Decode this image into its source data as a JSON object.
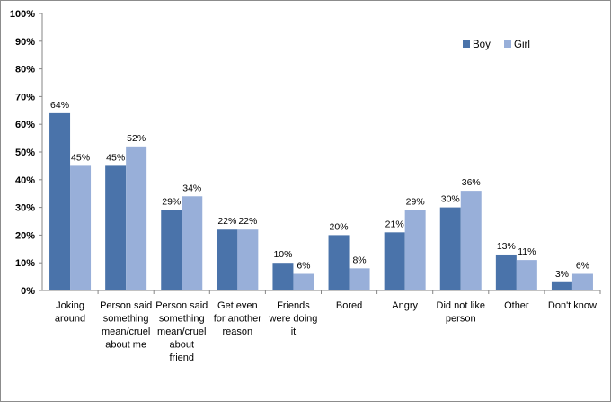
{
  "chart_data": {
    "type": "bar",
    "categories": [
      "Joking around",
      "Person said something mean/cruel about me",
      "Person said something mean/cruel about friend",
      "Get even for another reason",
      "Friends were doing it",
      "Bored",
      "Angry",
      "Did not like person",
      "Other",
      "Don't know"
    ],
    "category_lines": [
      [
        "Joking",
        "around"
      ],
      [
        "Person said",
        "something",
        "mean/cruel",
        "about me"
      ],
      [
        "Person said",
        "something",
        "mean/cruel",
        "about",
        "friend"
      ],
      [
        "Get even",
        "for another",
        "reason"
      ],
      [
        "Friends",
        "were doing",
        "it"
      ],
      [
        "Bored"
      ],
      [
        "Angry"
      ],
      [
        "Did not like",
        "person"
      ],
      [
        "Other"
      ],
      [
        "Don't know"
      ]
    ],
    "series": [
      {
        "name": "Boy",
        "values": [
          64,
          45,
          29,
          22,
          10,
          20,
          21,
          30,
          13,
          3
        ],
        "labels": [
          "64%",
          "45%",
          "29%",
          "22%",
          "10%",
          "20%",
          "21%",
          "30%",
          "13%",
          "3%"
        ],
        "color": "#4a73aa"
      },
      {
        "name": "Girl",
        "values": [
          45,
          52,
          34,
          22,
          6,
          8,
          29,
          36,
          11,
          6
        ],
        "labels": [
          "45%",
          "52%",
          "34%",
          "22%",
          "6%",
          "8%",
          "29%",
          "36%",
          "11%",
          "6%"
        ],
        "color": "#98afd9"
      }
    ],
    "ylim": [
      0,
      100
    ],
    "yticks": [
      0,
      10,
      20,
      30,
      40,
      50,
      60,
      70,
      80,
      90,
      100
    ],
    "ytick_labels": [
      "0%",
      "10%",
      "20%",
      "30%",
      "40%",
      "50%",
      "60%",
      "70%",
      "80%",
      "90%",
      "100%"
    ],
    "grid": false,
    "legend_position": "top-right"
  }
}
